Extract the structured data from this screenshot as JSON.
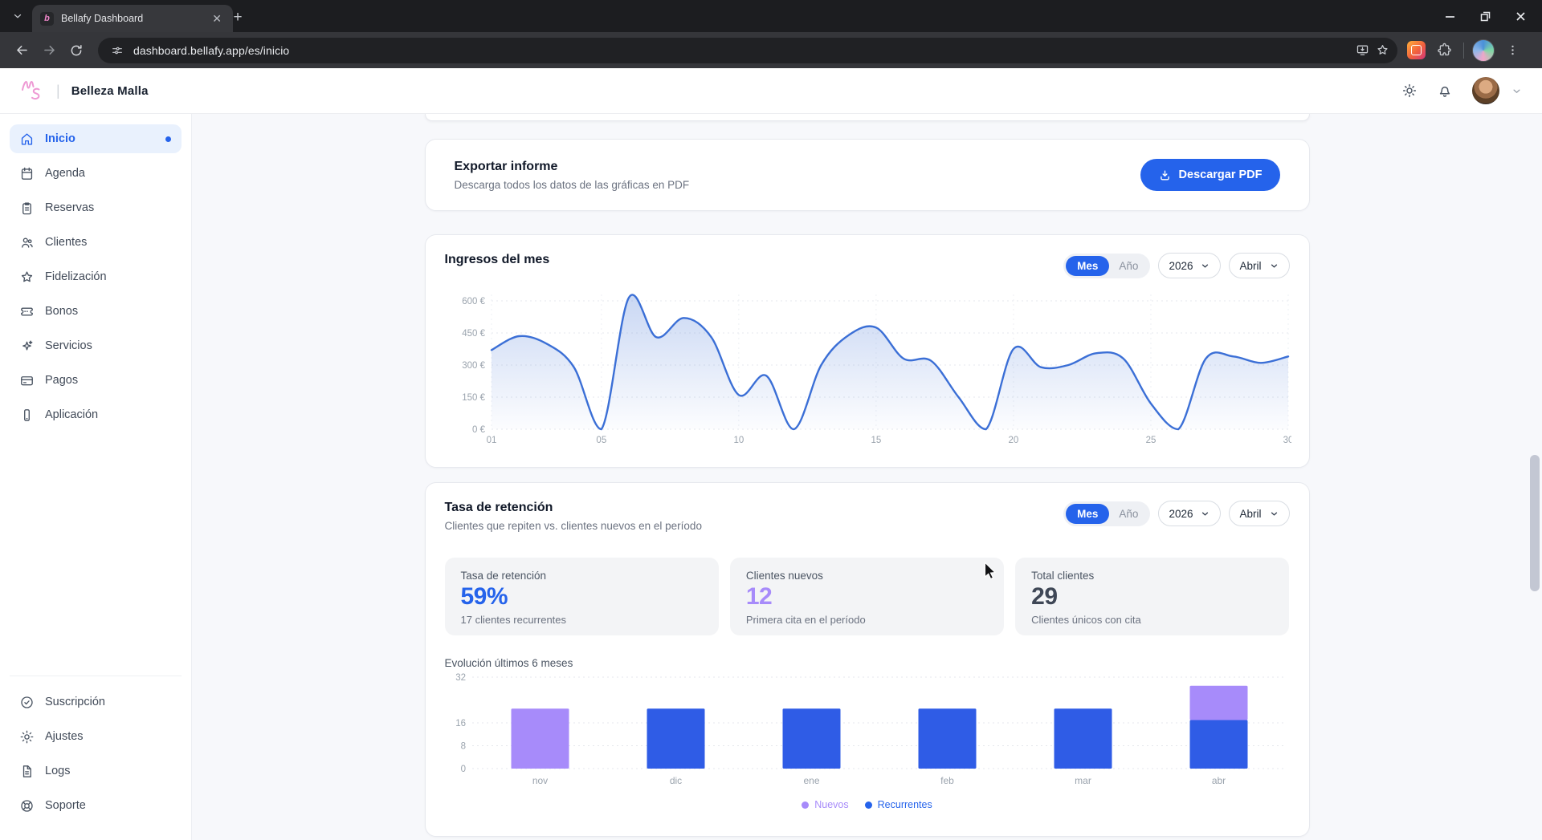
{
  "browser": {
    "tab_title": "Bellafy Dashboard",
    "url": "dashboard.bellafy.app/es/inicio",
    "favicon_letter": "b"
  },
  "header": {
    "brand": "Belleza Malla",
    "logo_monogram": "MS"
  },
  "sidebar": {
    "items": [
      {
        "label": "Inicio",
        "icon": "home",
        "active": true,
        "badge_dot": true
      },
      {
        "label": "Agenda",
        "icon": "calendar"
      },
      {
        "label": "Reservas",
        "icon": "clipboard"
      },
      {
        "label": "Clientes",
        "icon": "users"
      },
      {
        "label": "Fidelización",
        "icon": "star"
      },
      {
        "label": "Bonos",
        "icon": "ticket"
      },
      {
        "label": "Servicios",
        "icon": "sparkles"
      },
      {
        "label": "Pagos",
        "icon": "credit-card"
      },
      {
        "label": "Aplicación",
        "icon": "smartphone"
      }
    ],
    "footer_items": [
      {
        "label": "Suscripción",
        "icon": "badge-check"
      },
      {
        "label": "Ajustes",
        "icon": "gear"
      },
      {
        "label": "Logs",
        "icon": "file-text"
      },
      {
        "label": "Soporte",
        "icon": "life-buoy"
      }
    ]
  },
  "export_card": {
    "title": "Exportar informe",
    "subtitle": "Descarga todos los datos de las gráficas en PDF",
    "button_label": "Descargar PDF"
  },
  "income_card": {
    "title": "Ingresos del mes",
    "controls": {
      "period_options": [
        "Mes",
        "Año"
      ],
      "period_active": "Mes",
      "year": "2026",
      "month": "Abril"
    },
    "chart_data": {
      "type": "area",
      "title": "Ingresos del mes",
      "x": [
        1,
        2,
        3,
        4,
        5,
        6,
        7,
        8,
        9,
        10,
        11,
        12,
        13,
        14,
        15,
        16,
        17,
        18,
        19,
        20,
        21,
        22,
        23,
        24,
        25,
        26,
        27,
        28,
        29,
        30
      ],
      "values": [
        370,
        435,
        400,
        290,
        0,
        615,
        430,
        520,
        430,
        160,
        250,
        0,
        300,
        440,
        475,
        330,
        320,
        150,
        0,
        375,
        290,
        300,
        355,
        330,
        120,
        0,
        330,
        340,
        310,
        340
      ],
      "x_tick_days": [
        1,
        5,
        10,
        15,
        20,
        25,
        30
      ],
      "x_tick_labels": [
        "01",
        "05",
        "10",
        "15",
        "20",
        "25",
        "30"
      ],
      "y_ticks": [
        0,
        150,
        300,
        450,
        600
      ],
      "y_tick_labels": [
        "0 €",
        "150 €",
        "300 €",
        "450 €",
        "600 €"
      ],
      "ylim": [
        0,
        640
      ],
      "grid": true,
      "line_color": "#3b6fd6",
      "area_color": "#7196e0"
    }
  },
  "retention_card": {
    "title": "Tasa de retención",
    "subtitle": "Clientes que repiten vs. clientes nuevos en el período",
    "controls": {
      "period_options": [
        "Mes",
        "Año"
      ],
      "period_active": "Mes",
      "year": "2026",
      "month": "Abril"
    },
    "stats": [
      {
        "label": "Tasa de retención",
        "value": "59%",
        "sub": "17 clientes recurrentes",
        "value_color": "#2563eb"
      },
      {
        "label": "Clientes nuevos",
        "value": "12",
        "sub": "Primera cita en el período",
        "value_color": "#a78bfa"
      },
      {
        "label": "Total clientes",
        "value": "29",
        "sub": "Clientes únicos con cita",
        "value_color": "#3f4756"
      }
    ],
    "evolution_title": "Evolución últimos 6 meses",
    "chart_data": {
      "type": "bar",
      "stacked": true,
      "categories": [
        "nov",
        "dic",
        "ene",
        "feb",
        "mar",
        "abr"
      ],
      "series": [
        {
          "name": "Recurrentes",
          "color": "#2f5ce6",
          "values": [
            0,
            21,
            21,
            21,
            21,
            17
          ]
        },
        {
          "name": "Nuevos",
          "color": "#a78bfa",
          "values": [
            21,
            0,
            0,
            0,
            0,
            12
          ]
        }
      ],
      "y_ticks": [
        0,
        8,
        16,
        32
      ],
      "ylim": [
        0,
        32
      ],
      "grid": true,
      "legend_position": "bottom"
    },
    "legend": [
      {
        "label": "Nuevos",
        "color": "#a78bfa"
      },
      {
        "label": "Recurrentes",
        "color": "#2563eb"
      }
    ]
  },
  "colors": {
    "accent": "#2563eb",
    "purple": "#a78bfa",
    "grid": "#e4e7ec",
    "axis_text": "#9aa3ad"
  }
}
